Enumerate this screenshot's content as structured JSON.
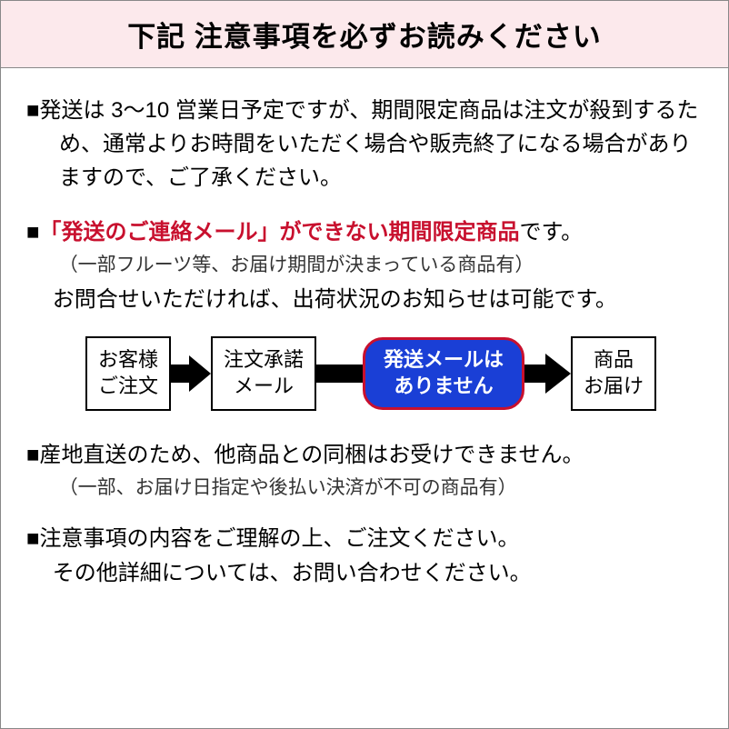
{
  "header": {
    "title": "下記 注意事項を必ずお読みください"
  },
  "section1": {
    "text": "■発送は 3～10 営業日予定ですが、期間限定商品は注文が殺到するため、通常よりお時間をいただく場合や販売終了になる場合がありますので、ご了承ください。"
  },
  "section2": {
    "prefix": "■",
    "red": "「発送のご連絡メール」ができない期間限定商品",
    "suffix": "です。",
    "sub": "（一部フルーツ等、お届け期間が決まっている商品有）",
    "follow": "お問合せいただければ、出荷状況のお知らせは可能です。"
  },
  "flow": {
    "box1_l1": "お客様",
    "box1_l2": "ご注文",
    "box2_l1": "注文承諾",
    "box2_l2": "メール",
    "badge_l1": "発送メールは",
    "badge_l2": "ありません",
    "box3_l1": "商品",
    "box3_l2": "お届け"
  },
  "section3": {
    "text": "■産地直送のため、他商品との同梱はお受けできません。",
    "sub": "（一部、お届け日指定や後払い決済が不可の商品有）"
  },
  "section4": {
    "line1": "■注意事項の内容をご理解の上、ご注文ください。",
    "line2": "その他詳細については、お問い合わせください。"
  },
  "colors": {
    "header_bg": "#fce9ec",
    "red": "#c8102e",
    "blue": "#1a3fd6",
    "border": "#888888",
    "black": "#000000"
  }
}
